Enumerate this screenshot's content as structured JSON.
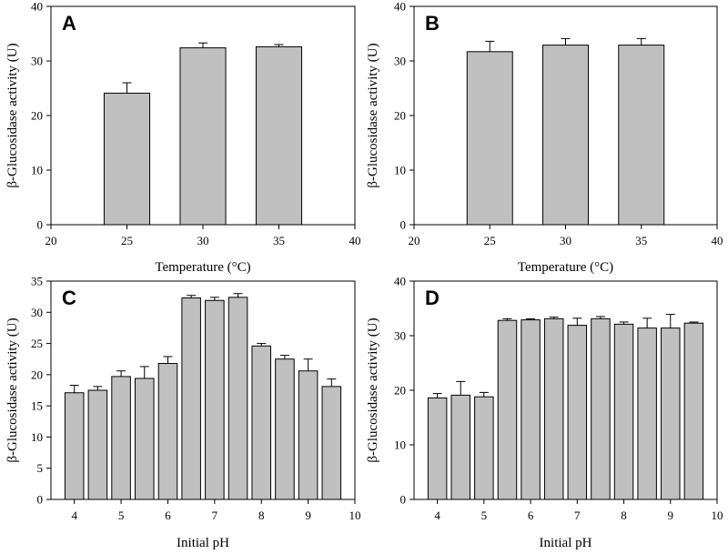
{
  "chart_data": [
    {
      "panel": "A",
      "type": "bar",
      "xlabel": "Temperature (°C)",
      "ylabel": "β-Glucosidase activity (U)",
      "xlim": [
        20,
        40
      ],
      "xticks": [
        20,
        25,
        30,
        35,
        40
      ],
      "ylim": [
        0,
        40
      ],
      "yticks": [
        0,
        10,
        20,
        30,
        40
      ],
      "bar_width": 3,
      "x": [
        25,
        30,
        35
      ],
      "values": [
        24.1,
        32.4,
        32.6
      ],
      "errors": [
        1.9,
        0.9,
        0.4
      ],
      "bar_color": "#c0c0c0",
      "grid": false
    },
    {
      "panel": "B",
      "type": "bar",
      "xlabel": "Temperature (°C)",
      "ylabel": "β-Glucosidase activity (U)",
      "xlim": [
        20,
        40
      ],
      "xticks": [
        20,
        25,
        30,
        35,
        40
      ],
      "ylim": [
        0,
        40
      ],
      "yticks": [
        0,
        10,
        20,
        30,
        40
      ],
      "bar_width": 3,
      "x": [
        25,
        30,
        35
      ],
      "values": [
        31.7,
        32.9,
        32.9
      ],
      "errors": [
        1.9,
        1.2,
        1.2
      ],
      "bar_color": "#c0c0c0",
      "grid": false
    },
    {
      "panel": "C",
      "type": "bar",
      "xlabel": "Initial pH",
      "ylabel": "β-Glucosidase activity (U)",
      "xlim": [
        3.5,
        10
      ],
      "xticks": [
        4,
        5,
        6,
        7,
        8,
        9,
        10
      ],
      "ylim": [
        0,
        35
      ],
      "yticks": [
        0,
        5,
        10,
        15,
        20,
        25,
        30,
        35
      ],
      "bar_width": 0.4,
      "x": [
        4,
        4.5,
        5,
        5.5,
        6,
        6.5,
        7,
        7.5,
        8,
        8.5,
        9,
        9.5
      ],
      "values": [
        17.1,
        17.5,
        19.7,
        19.4,
        21.8,
        32.3,
        31.9,
        32.4,
        24.6,
        22.5,
        20.6,
        18.1
      ],
      "errors": [
        1.2,
        0.6,
        0.9,
        1.9,
        1.1,
        0.4,
        0.5,
        0.6,
        0.4,
        0.6,
        1.9,
        1.2
      ],
      "bar_color": "#c0c0c0",
      "grid": false
    },
    {
      "panel": "D",
      "type": "bar",
      "xlabel": "Initial pH",
      "ylabel": "β-Glucosidase activity (U)",
      "xlim": [
        3.5,
        10
      ],
      "xticks": [
        4,
        5,
        6,
        7,
        8,
        9,
        10
      ],
      "ylim": [
        0,
        40
      ],
      "yticks": [
        0,
        10,
        20,
        30,
        40
      ],
      "bar_width": 0.4,
      "x": [
        4,
        4.5,
        5,
        5.5,
        6,
        6.5,
        7,
        7.5,
        8,
        8.5,
        9,
        9.5
      ],
      "values": [
        18.6,
        19.1,
        18.8,
        32.8,
        32.9,
        33.1,
        31.9,
        33.1,
        32.1,
        31.4,
        31.4,
        32.3
      ],
      "errors": [
        0.8,
        2.5,
        0.8,
        0.3,
        0.2,
        0.3,
        1.3,
        0.4,
        0.4,
        1.8,
        2.5,
        0.2
      ],
      "bar_color": "#c0c0c0",
      "grid": false
    }
  ]
}
